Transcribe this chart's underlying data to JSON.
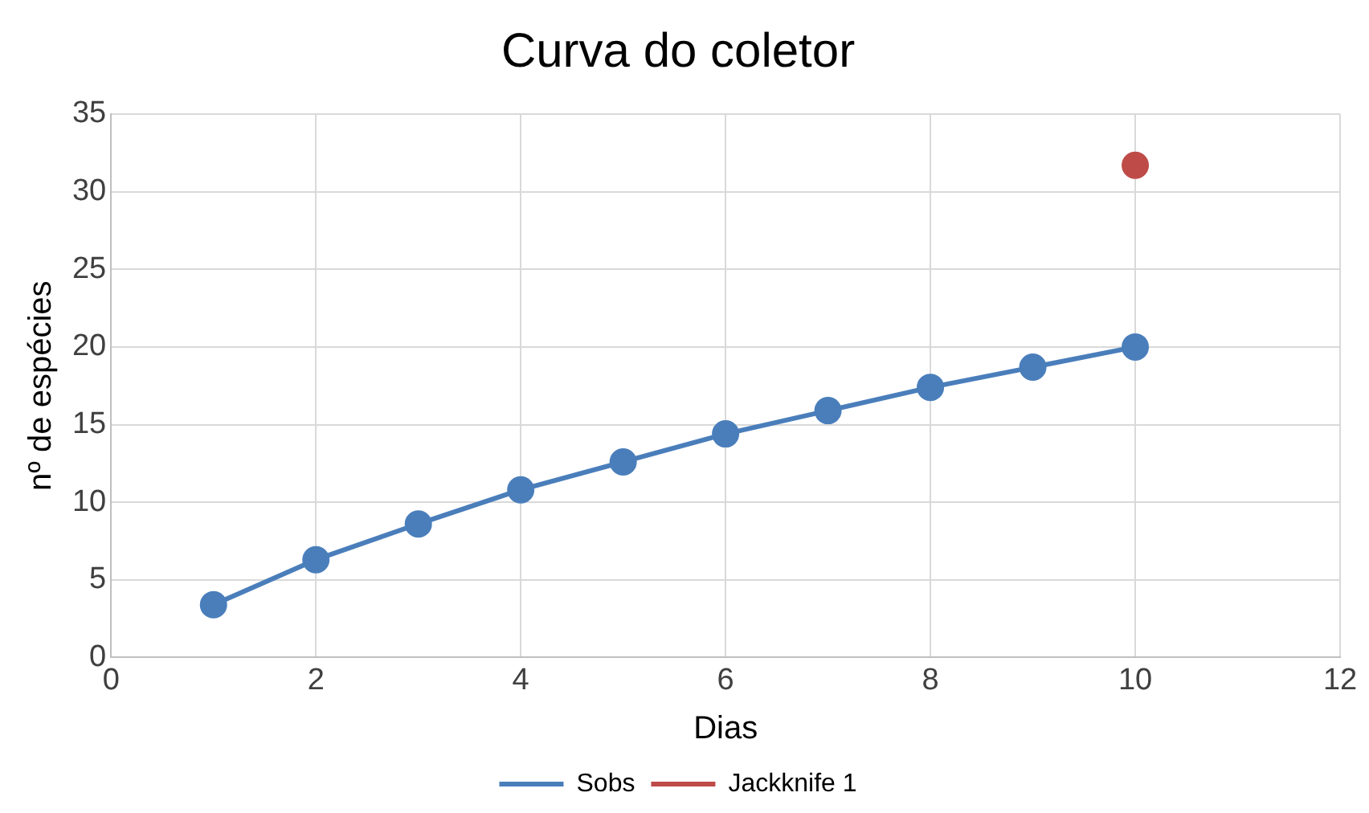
{
  "chart_data": {
    "type": "line",
    "title": "Curva do coletor",
    "xlabel": "Dias",
    "ylabel": "nº de espécies",
    "xlim": [
      0,
      12
    ],
    "xticks": [
      0,
      2,
      4,
      6,
      8,
      10,
      12
    ],
    "ylim": [
      0,
      35
    ],
    "yticks": [
      0,
      5,
      10,
      15,
      20,
      25,
      30,
      35
    ],
    "grid": true,
    "legend": "bottom",
    "marker": "circle",
    "line_style": "solid",
    "series": [
      {
        "name": "Sobs",
        "color": "#4a7ebb",
        "x": [
          1,
          2,
          3,
          4,
          5,
          6,
          7,
          8,
          9,
          10
        ],
        "values": [
          3.4,
          6.3,
          8.6,
          10.8,
          12.6,
          14.4,
          15.9,
          17.4,
          18.7,
          20.0
        ]
      },
      {
        "name": "Jackknife 1",
        "type": "scatter",
        "color": "#be4b48",
        "x": [
          10
        ],
        "values": [
          31.7
        ]
      }
    ]
  }
}
